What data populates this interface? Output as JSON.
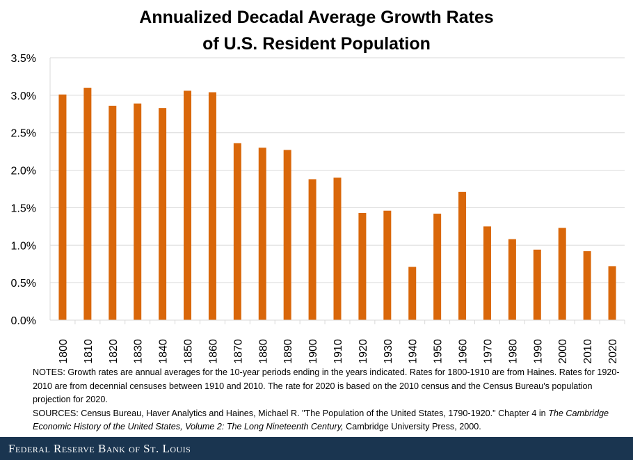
{
  "chart_data": {
    "type": "bar",
    "title": "Annualized Decadal Average Growth Rates",
    "title_line2": "of U.S. Resident Population",
    "categories": [
      "1800",
      "1810",
      "1820",
      "1830",
      "1840",
      "1850",
      "1860",
      "1870",
      "1880",
      "1890",
      "1900",
      "1910",
      "1920",
      "1930",
      "1940",
      "1950",
      "1960",
      "1970",
      "1980",
      "1990",
      "2000",
      "2010",
      "2020"
    ],
    "values": [
      3.01,
      3.1,
      2.86,
      2.89,
      2.83,
      3.06,
      3.04,
      2.36,
      2.3,
      2.27,
      1.88,
      1.9,
      1.43,
      1.46,
      0.71,
      1.42,
      1.71,
      1.25,
      1.08,
      0.94,
      1.23,
      0.92,
      0.72
    ],
    "ylim": [
      0,
      3.5
    ],
    "yticks": [
      "0.0%",
      "0.5%",
      "1.0%",
      "1.5%",
      "2.0%",
      "2.5%",
      "3.0%",
      "3.5%"
    ],
    "xlabel": "",
    "ylabel": "",
    "grid": true,
    "bar_color": "#D9670A"
  },
  "notes": {
    "line1": "NOTES: Growth rates are annual averages for the 10-year periods ending in the years indicated. Rates for 1800-1910 are from Haines. Rates for 1920-2010 are from decennial censuses between 1910 and 2010. The rate for 2020 is based on the 2010 census and the Census Bureau's population projection for 2020.",
    "sources_prefix": "SOURCES: Census Bureau, Haver Analytics and Haines, Michael R. \"The Population of the United States, 1790-1920.\" Chapter 4 in",
    "sources_italic": "The Cambridge Economic History of the United States, Volume 2: The Long Nineteenth Century,",
    "sources_suffix": " Cambridge University Press, 2000."
  },
  "footer": {
    "brand": "Federal Reserve Bank of St. Louis"
  }
}
